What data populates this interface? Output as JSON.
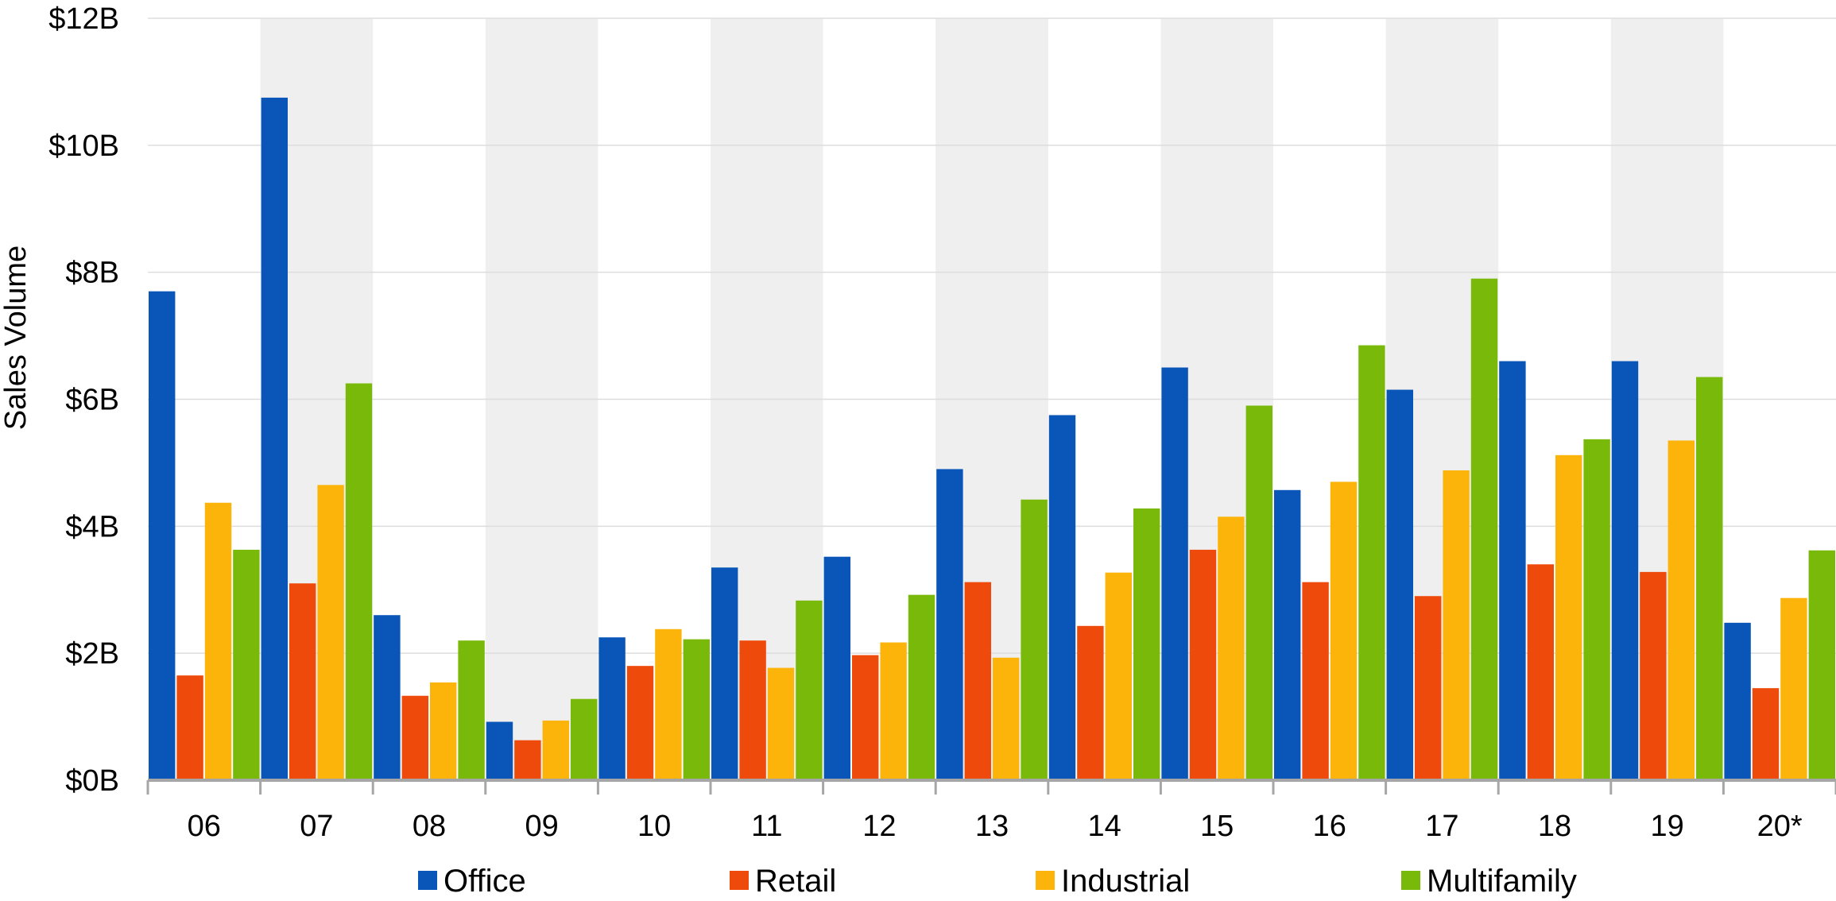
{
  "chart_data": {
    "type": "bar",
    "title": "",
    "xlabel": "",
    "ylabel": "Sales Volume",
    "categories": [
      "06",
      "07",
      "08",
      "09",
      "10",
      "11",
      "12",
      "13",
      "14",
      "15",
      "16",
      "17",
      "18",
      "19",
      "20*"
    ],
    "ylim": [
      0,
      12
    ],
    "yticks": [
      {
        "value": 0,
        "label": "$0B"
      },
      {
        "value": 2,
        "label": "$2B"
      },
      {
        "value": 4,
        "label": "$4B"
      },
      {
        "value": 6,
        "label": "$6B"
      },
      {
        "value": 8,
        "label": "$8B"
      },
      {
        "value": 10,
        "label": "$10B"
      },
      {
        "value": 12,
        "label": "$12B"
      }
    ],
    "grid": true,
    "alternating_bands": true,
    "legend_position": "bottom",
    "series": [
      {
        "name": "Office",
        "color": "#0A56B8",
        "values": [
          7.7,
          10.75,
          2.6,
          0.92,
          2.25,
          3.35,
          3.52,
          4.9,
          5.75,
          6.5,
          4.57,
          6.15,
          6.6,
          6.6,
          2.48
        ]
      },
      {
        "name": "Retail",
        "color": "#EE4A0B",
        "values": [
          1.65,
          3.1,
          1.33,
          0.63,
          1.8,
          2.2,
          1.97,
          3.12,
          2.43,
          3.63,
          3.12,
          2.9,
          3.4,
          3.28,
          1.45
        ]
      },
      {
        "name": "Industrial",
        "color": "#FDB40A",
        "values": [
          4.37,
          4.65,
          1.54,
          0.94,
          2.38,
          1.77,
          2.17,
          1.93,
          3.27,
          4.15,
          4.7,
          4.88,
          5.12,
          5.35,
          2.87
        ]
      },
      {
        "name": "Multifamily",
        "color": "#78B90A",
        "values": [
          3.63,
          6.25,
          2.2,
          1.28,
          2.22,
          2.83,
          2.92,
          4.42,
          4.28,
          5.9,
          6.85,
          7.9,
          5.37,
          6.35,
          3.62
        ]
      }
    ]
  }
}
